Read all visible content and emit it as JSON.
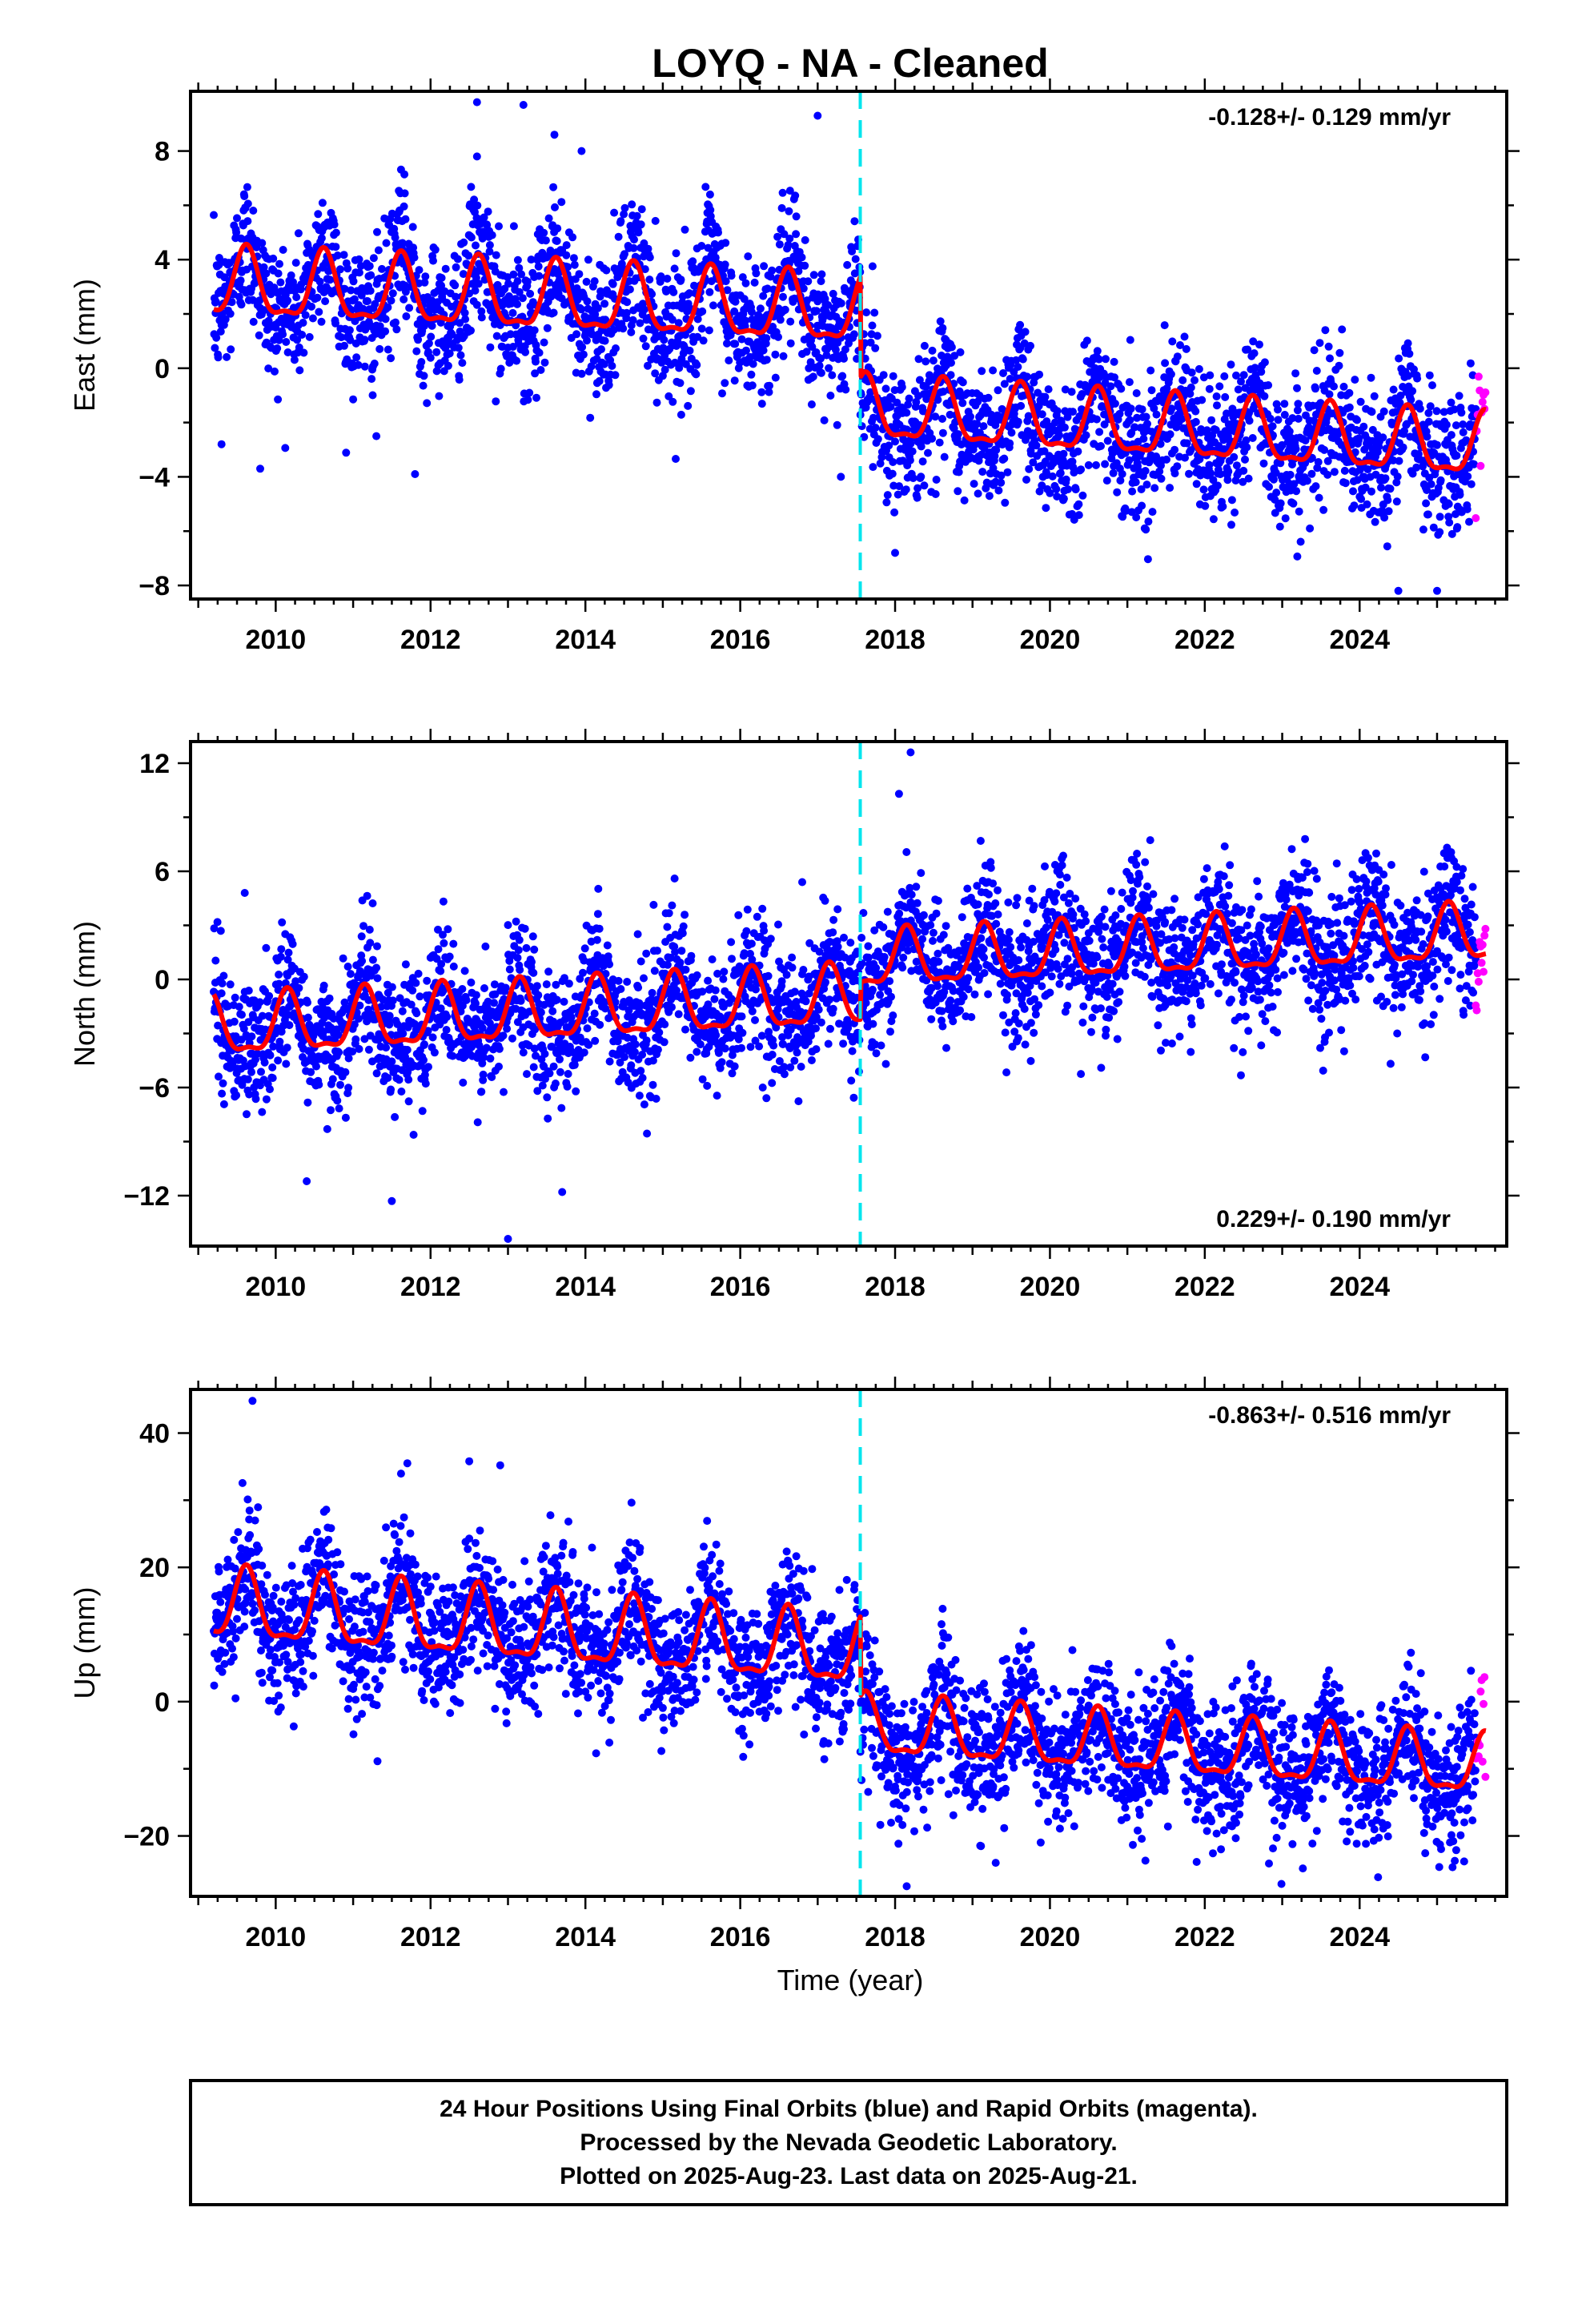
{
  "title": "LOYQ  - NA - Cleaned",
  "xlabel": "Time (year)",
  "footer": {
    "lines": [
      "24 Hour Positions Using Final Orbits (blue) and Rapid Orbits (magenta).",
      "Processed by the Nevada Geodetic Laboratory.",
      "Plotted on 2025-Aug-23. Last data on 2025-Aug-21."
    ]
  },
  "colors": {
    "final_orbits": "#0000ff",
    "rapid_orbits": "#ff00ff",
    "model": "#ff0000",
    "offset_line": "#00e5ee"
  },
  "chart_data": [
    {
      "type": "scatter",
      "component": "East",
      "ylabel": "East (mm)",
      "rate": "-0.128+/- 0.129 mm/yr",
      "rate_position": "top-right",
      "xlim": [
        2008.9,
        2025.9
      ],
      "ylim": [
        -8.5,
        10.2
      ],
      "xticks": [
        2010,
        2012,
        2014,
        2016,
        2018,
        2020,
        2022,
        2024
      ],
      "yticks": [
        -8,
        -4,
        0,
        4,
        8
      ],
      "ytick_labels": [
        "−8",
        "−4",
        "0",
        "4",
        "8"
      ],
      "data_start": 2009.2,
      "data_end": 2025.63,
      "offset_epoch": 2017.55,
      "rapid_start": 2025.5,
      "model": {
        "segments": [
          {
            "from": 2009.2,
            "to": 2017.55,
            "level_start": 3.0,
            "level_end": 2.0,
            "annual_amp": 1.2,
            "peak_phase": 0.62
          },
          {
            "from": 2017.55,
            "to": 2025.63,
            "level_start": -1.6,
            "level_end": -3.0,
            "annual_amp": 1.1,
            "peak_phase": 0.62
          }
        ]
      },
      "scatter_sd": 1.25,
      "outliers": [
        {
          "x": 2012.6,
          "y": 9.8
        },
        {
          "x": 2013.2,
          "y": 9.7
        },
        {
          "x": 2017.0,
          "y": 9.3
        },
        {
          "x": 2013.6,
          "y": 8.6
        },
        {
          "x": 2012.6,
          "y": 7.8
        },
        {
          "x": 2013.95,
          "y": 8.0
        },
        {
          "x": 2009.3,
          "y": -2.8
        },
        {
          "x": 2009.8,
          "y": -3.7
        },
        {
          "x": 2011.8,
          "y": -3.9
        },
        {
          "x": 2011.3,
          "y": -2.5
        },
        {
          "x": 2017.3,
          "y": -4.0
        },
        {
          "x": 2024.5,
          "y": -8.2
        },
        {
          "x": 2025.0,
          "y": -8.2
        },
        {
          "x": 2018.0,
          "y": -6.8
        }
      ]
    },
    {
      "type": "scatter",
      "component": "North",
      "ylabel": "North (mm)",
      "rate": "0.229+/- 0.190 mm/yr",
      "rate_position": "bottom-right",
      "xlim": [
        2008.9,
        2025.9
      ],
      "ylim": [
        -14.8,
        13.2
      ],
      "xticks": [
        2010,
        2012,
        2014,
        2016,
        2018,
        2020,
        2022,
        2024
      ],
      "yticks": [
        -12,
        -6,
        0,
        6,
        12
      ],
      "ytick_labels": [
        "−12",
        "−6",
        "0",
        "6",
        "12"
      ],
      "data_start": 2009.2,
      "data_end": 2025.63,
      "offset_epoch": 2017.55,
      "rapid_start": 2025.5,
      "model": {
        "segments": [
          {
            "from": 2009.2,
            "to": 2017.55,
            "level_start": -2.8,
            "level_end": -1.1,
            "annual_amp": 1.6,
            "peak_phase": 0.15
          },
          {
            "from": 2017.55,
            "to": 2025.63,
            "level_start": 0.9,
            "level_end": 2.4,
            "annual_amp": 1.5,
            "peak_phase": 0.15
          }
        ]
      },
      "scatter_sd": 1.8,
      "outliers": [
        {
          "x": 2018.2,
          "y": 12.6
        },
        {
          "x": 2018.05,
          "y": 10.3
        },
        {
          "x": 2013.0,
          "y": -14.4
        },
        {
          "x": 2011.5,
          "y": -12.3
        },
        {
          "x": 2013.7,
          "y": -11.8
        },
        {
          "x": 2010.4,
          "y": -11.2
        },
        {
          "x": 2009.6,
          "y": 4.8
        },
        {
          "x": 2016.8,
          "y": 5.4
        }
      ]
    },
    {
      "type": "scatter",
      "component": "Up",
      "ylabel": "Up (mm)",
      "rate": "-0.863+/- 0.516 mm/yr",
      "rate_position": "top-right",
      "xlim": [
        2008.9,
        2025.9
      ],
      "ylim": [
        -29.0,
        46.5
      ],
      "xticks": [
        2010,
        2012,
        2014,
        2016,
        2018,
        2020,
        2022,
        2024
      ],
      "yticks": [
        -20,
        0,
        20,
        40
      ],
      "ytick_labels": [
        "−20",
        "0",
        "20",
        "40"
      ],
      "data_start": 2009.2,
      "data_end": 2025.63,
      "offset_epoch": 2017.55,
      "rapid_start": 2025.5,
      "model": {
        "segments": [
          {
            "from": 2009.2,
            "to": 2017.55,
            "level_start": 14.0,
            "level_end": 7.0,
            "annual_amp": 5.0,
            "peak_phase": 0.62
          },
          {
            "from": 2017.55,
            "to": 2025.63,
            "level_start": -4.0,
            "level_end": -10.0,
            "annual_amp": 4.2,
            "peak_phase": 0.62
          }
        ]
      },
      "scatter_sd": 5.0,
      "outliers": [
        {
          "x": 2009.7,
          "y": 44.8
        },
        {
          "x": 2011.7,
          "y": 35.5
        },
        {
          "x": 2012.5,
          "y": 35.8
        },
        {
          "x": 2012.9,
          "y": 35.2
        },
        {
          "x": 2018.15,
          "y": -27.5
        },
        {
          "x": 2025.35,
          "y": -23.8
        },
        {
          "x": 2019.3,
          "y": -24.0
        }
      ]
    }
  ]
}
